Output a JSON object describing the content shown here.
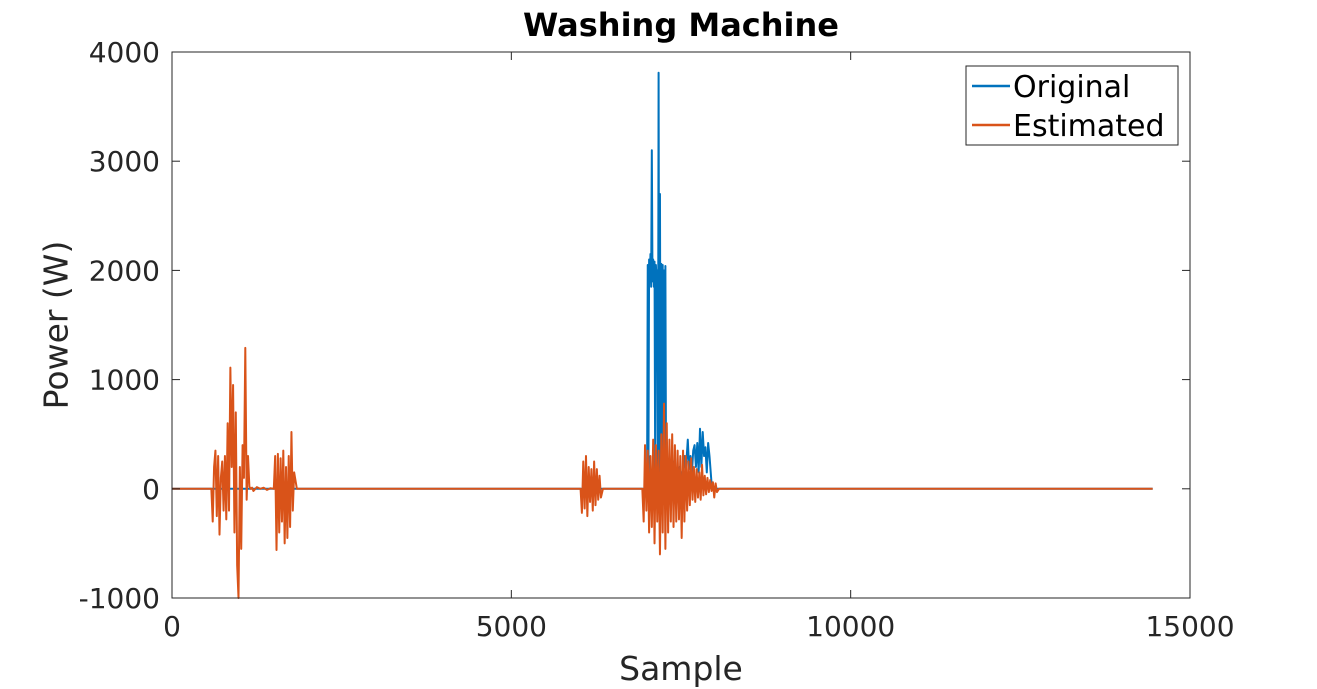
{
  "chart_data": {
    "type": "line",
    "title": "Washing Machine",
    "xlabel": "Sample",
    "ylabel": "Power (W)",
    "xlim": [
      0,
      15000
    ],
    "ylim": [
      -1000,
      4000
    ],
    "xticks": [
      0,
      5000,
      10000,
      15000
    ],
    "xtick_labels": [
      "0",
      "5000",
      "10000",
      "15000"
    ],
    "yticks": [
      -1000,
      0,
      1000,
      2000,
      3000,
      4000
    ],
    "ytick_labels": [
      "-1000",
      "0",
      "1000",
      "2000",
      "3000",
      "4000"
    ],
    "grid": false,
    "legend_position": "top-right",
    "series": [
      {
        "name": "Original",
        "color": "#0072BD",
        "x": [
          0,
          6980,
          7000,
          7010,
          7020,
          7030,
          7040,
          7050,
          7060,
          7070,
          7080,
          7090,
          7100,
          7110,
          7120,
          7130,
          7140,
          7150,
          7160,
          7170,
          7180,
          7190,
          7200,
          7210,
          7220,
          7230,
          7240,
          7250,
          7260,
          7270,
          7280,
          7290,
          7300,
          7310,
          7320,
          7330,
          7340,
          7360,
          7380,
          7400,
          7420,
          7450,
          7480,
          7500,
          7520,
          7550,
          7570,
          7580,
          7600,
          7620,
          7640,
          7660,
          7680,
          7700,
          7720,
          7740,
          7760,
          7780,
          7800,
          7820,
          7840,
          7860,
          7880,
          7900,
          7920,
          7950,
          8000,
          14450
        ],
        "y": [
          0,
          0,
          50,
          2050,
          80,
          2100,
          1900,
          2150,
          1850,
          3100,
          1900,
          2100,
          1850,
          2080,
          60,
          2050,
          1900,
          2000,
          40,
          3810,
          80,
          2700,
          30,
          2060,
          50,
          2050,
          40,
          2000,
          60,
          2040,
          30,
          200,
          150,
          250,
          100,
          200,
          150,
          220,
          100,
          250,
          120,
          150,
          200,
          150,
          100,
          300,
          150,
          250,
          450,
          180,
          300,
          140,
          350,
          400,
          200,
          420,
          150,
          550,
          200,
          520,
          300,
          380,
          150,
          420,
          300,
          50,
          0,
          0
        ]
      },
      {
        "name": "Estimated",
        "color": "#D95319",
        "x": [
          0,
          580,
          600,
          620,
          640,
          660,
          680,
          700,
          720,
          740,
          760,
          780,
          800,
          820,
          840,
          860,
          880,
          900,
          920,
          940,
          960,
          980,
          1000,
          1020,
          1040,
          1060,
          1080,
          1100,
          1120,
          1140,
          1160,
          1180,
          1200,
          1250,
          1300,
          1350,
          1400,
          1450,
          1500,
          1520,
          1540,
          1560,
          1580,
          1600,
          1620,
          1640,
          1660,
          1680,
          1700,
          1720,
          1740,
          1760,
          1780,
          1800,
          1840,
          6020,
          6040,
          6060,
          6080,
          6100,
          6120,
          6140,
          6160,
          6180,
          6200,
          6220,
          6240,
          6260,
          6280,
          6300,
          6320,
          6350,
          6930,
          6950,
          6970,
          6990,
          7010,
          7030,
          7050,
          7070,
          7090,
          7110,
          7130,
          7150,
          7170,
          7190,
          7210,
          7230,
          7250,
          7270,
          7290,
          7310,
          7330,
          7350,
          7370,
          7390,
          7410,
          7430,
          7450,
          7470,
          7490,
          7510,
          7530,
          7550,
          7570,
          7590,
          7610,
          7630,
          7650,
          7670,
          7690,
          7710,
          7730,
          7750,
          7770,
          7790,
          7810,
          7830,
          7850,
          7870,
          7890,
          7910,
          7930,
          7950,
          7970,
          7990,
          8010,
          8030,
          8060,
          8100,
          14450
        ],
        "y": [
          0,
          0,
          -300,
          200,
          350,
          -250,
          300,
          -420,
          100,
          250,
          -200,
          300,
          -280,
          600,
          -200,
          1110,
          200,
          950,
          -400,
          700,
          -700,
          -1000,
          200,
          -550,
          400,
          100,
          1290,
          -100,
          300,
          20,
          0,
          10,
          -20,
          15,
          0,
          10,
          -10,
          5,
          0,
          300,
          -560,
          320,
          -400,
          280,
          -300,
          350,
          -500,
          200,
          -450,
          300,
          -350,
          520,
          -200,
          150,
          0,
          0,
          -220,
          250,
          -180,
          300,
          -250,
          200,
          -120,
          180,
          -200,
          250,
          -150,
          180,
          -100,
          120,
          -80,
          0,
          0,
          -300,
          400,
          -200,
          350,
          -400,
          300,
          -350,
          450,
          -500,
          400,
          -300,
          350,
          -600,
          500,
          -400,
          780,
          -550,
          600,
          -400,
          450,
          -300,
          500,
          -350,
          400,
          -300,
          350,
          -280,
          300,
          -450,
          350,
          -300,
          300,
          -200,
          250,
          -150,
          280,
          -100,
          200,
          -120,
          180,
          -80,
          150,
          -100,
          220,
          -60,
          120,
          -50,
          100,
          -30,
          80,
          -20,
          60,
          -80,
          50,
          -30,
          0,
          0,
          0
        ]
      }
    ]
  }
}
